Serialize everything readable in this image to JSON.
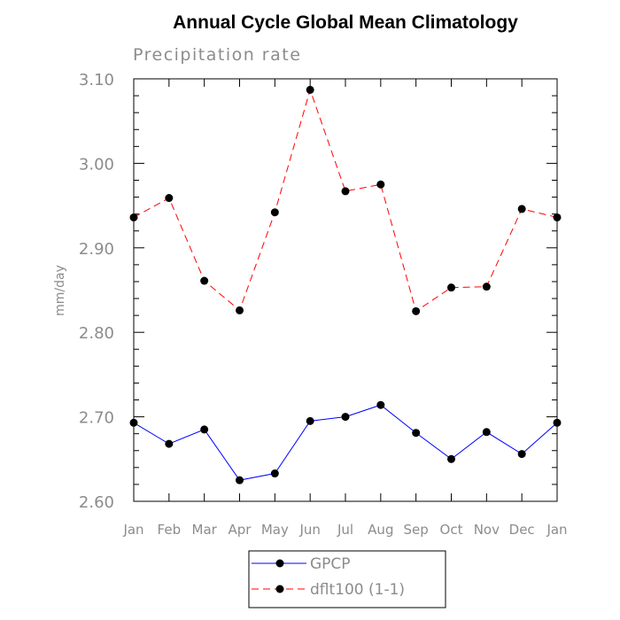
{
  "chart_data": {
    "type": "line",
    "title": "Annual Cycle Global Mean Climatology",
    "subtitle": "Precipitation rate",
    "xlabel": "",
    "ylabel": "mm/day",
    "categories": [
      "Jan",
      "Feb",
      "Mar",
      "Apr",
      "May",
      "Jun",
      "Jul",
      "Aug",
      "Sep",
      "Oct",
      "Nov",
      "Dec",
      "Jan"
    ],
    "ylim": [
      2.6,
      3.1
    ],
    "yticks": [
      "2.60",
      "2.70",
      "2.80",
      "2.90",
      "3.00",
      "3.10"
    ],
    "grid": false,
    "legend_position": "bottom-center",
    "series": [
      {
        "name": "GPCP",
        "color": "#0000ff",
        "line_style": "solid",
        "marker": "filled-circle",
        "values": [
          2.693,
          2.668,
          2.685,
          2.625,
          2.633,
          2.695,
          2.7,
          2.714,
          2.681,
          2.65,
          2.682,
          2.656,
          2.693
        ]
      },
      {
        "name": "dflt100 (1-1)",
        "color": "#ff0000",
        "line_style": "dashed",
        "marker": "filled-circle",
        "values": [
          2.936,
          2.959,
          2.861,
          2.826,
          2.942,
          3.087,
          2.967,
          2.975,
          2.825,
          2.853,
          2.854,
          2.946,
          2.936
        ]
      }
    ]
  }
}
